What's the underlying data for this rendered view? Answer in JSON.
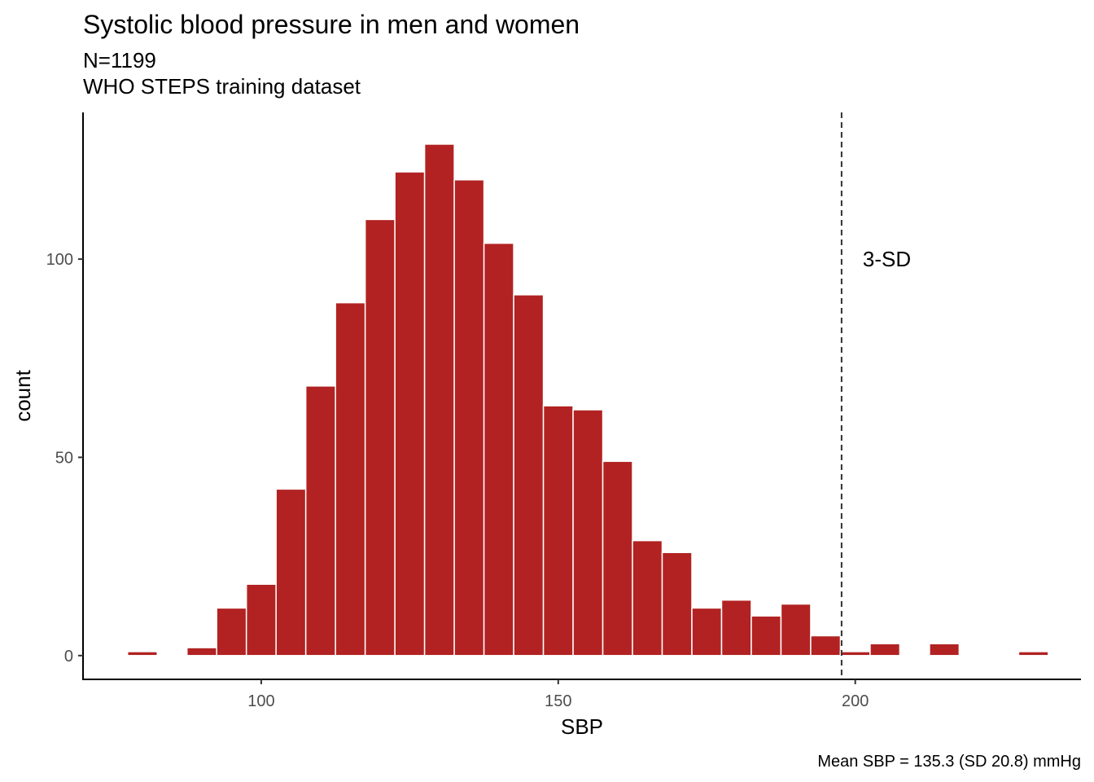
{
  "chart_data": {
    "type": "bar",
    "title": "Systolic blood pressure in men and women",
    "subtitle_lines": [
      "N=1199",
      "WHO STEPS training dataset"
    ],
    "xlabel": "SBP",
    "ylabel": "count",
    "caption": "Mean SBP = 135.3 (SD 20.8) mmHg",
    "xlim": [
      70,
      238
    ],
    "ylim": [
      -6,
      137
    ],
    "x_ticks": [
      100,
      150,
      200
    ],
    "y_ticks": [
      0,
      50,
      100
    ],
    "bin_width": 5,
    "bar_color": "#b22222",
    "grid": false,
    "bins": [
      {
        "x": 80,
        "count": 1
      },
      {
        "x": 90,
        "count": 2
      },
      {
        "x": 95,
        "count": 12
      },
      {
        "x": 100,
        "count": 18
      },
      {
        "x": 105,
        "count": 42
      },
      {
        "x": 110,
        "count": 68
      },
      {
        "x": 115,
        "count": 89
      },
      {
        "x": 120,
        "count": 110
      },
      {
        "x": 125,
        "count": 122
      },
      {
        "x": 130,
        "count": 129
      },
      {
        "x": 135,
        "count": 120
      },
      {
        "x": 140,
        "count": 104
      },
      {
        "x": 145,
        "count": 91
      },
      {
        "x": 150,
        "count": 63
      },
      {
        "x": 155,
        "count": 62
      },
      {
        "x": 160,
        "count": 49
      },
      {
        "x": 165,
        "count": 29
      },
      {
        "x": 170,
        "count": 26
      },
      {
        "x": 175,
        "count": 12
      },
      {
        "x": 180,
        "count": 14
      },
      {
        "x": 185,
        "count": 10
      },
      {
        "x": 190,
        "count": 13
      },
      {
        "x": 195,
        "count": 5
      },
      {
        "x": 200,
        "count": 1
      },
      {
        "x": 205,
        "count": 3
      },
      {
        "x": 215,
        "count": 3
      },
      {
        "x": 230,
        "count": 1
      }
    ],
    "reference_line": {
      "x": 197.7,
      "label": "3-SD",
      "label_y": 100,
      "style": "dashed",
      "color": "#333333"
    }
  }
}
